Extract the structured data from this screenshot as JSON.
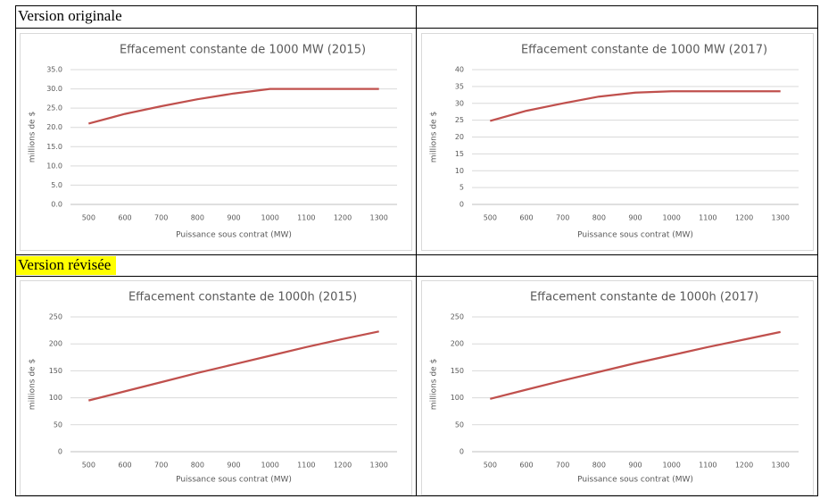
{
  "sections": [
    {
      "label": "Version originale"
    },
    {
      "label": "Version révisée"
    }
  ],
  "chart_data": [
    {
      "type": "line",
      "title": "Effacement constante de 1000 MW (2015)",
      "x_label": "Puissance sous contrat (MW)",
      "y_label": "millions de $",
      "categories": [
        "500",
        "600",
        "700",
        "800",
        "900",
        "1000",
        "1100",
        "1200",
        "1300"
      ],
      "values": [
        21.0,
        23.5,
        25.5,
        27.3,
        28.8,
        30.0,
        30.0,
        30.0,
        30.0
      ],
      "color": "#c0504d",
      "ylim": [
        0,
        35
      ],
      "yticks": [
        {
          "value": 0,
          "label": "0.0"
        },
        {
          "value": 5,
          "label": "5.0"
        },
        {
          "value": 10,
          "label": "10.0"
        },
        {
          "value": 15,
          "label": "15.0"
        },
        {
          "value": 20,
          "label": "20.0"
        },
        {
          "value": 25,
          "label": "25.0"
        },
        {
          "value": 30,
          "label": "30.0"
        },
        {
          "value": 35,
          "label": "35.0"
        }
      ],
      "grid": true
    },
    {
      "type": "line",
      "title": "Effacement constante de 1000 MW (2017)",
      "x_label": "Puissance sous contrat (MW)",
      "y_label": "millions de $",
      "categories": [
        "500",
        "600",
        "700",
        "800",
        "900",
        "1000",
        "1100",
        "1200",
        "1300"
      ],
      "values": [
        24.8,
        27.8,
        30.0,
        32.0,
        33.2,
        33.6,
        33.6,
        33.6,
        33.6
      ],
      "color": "#c0504d",
      "ylim": [
        0,
        40
      ],
      "yticks": [
        0,
        5,
        10,
        15,
        20,
        25,
        30,
        35,
        40
      ],
      "grid": true
    },
    {
      "type": "line",
      "title": "Effacement constante de 1000h (2015)",
      "x_label": "Puissance sous contrat (MW)",
      "y_label": "millions de $",
      "categories": [
        "500",
        "600",
        "700",
        "800",
        "900",
        "1000",
        "1100",
        "1200",
        "1300"
      ],
      "values": [
        95,
        112,
        129,
        146,
        162,
        178,
        194,
        209,
        223
      ],
      "color": "#c0504d",
      "ylim": [
        0,
        250
      ],
      "yticks": [
        0,
        50,
        100,
        150,
        200,
        250
      ],
      "grid": true
    },
    {
      "type": "line",
      "title": "Effacement constante de 1000h (2017)",
      "x_label": "Puissance sous contrat (MW)",
      "y_label": "millions de $",
      "categories": [
        "500",
        "600",
        "700",
        "800",
        "900",
        "1000",
        "1100",
        "1200",
        "1300"
      ],
      "values": [
        98,
        115,
        132,
        148,
        164,
        179,
        194,
        208,
        222
      ],
      "color": "#c0504d",
      "ylim": [
        0,
        250
      ],
      "yticks": [
        0,
        50,
        100,
        150,
        200,
        250
      ],
      "grid": true
    }
  ]
}
